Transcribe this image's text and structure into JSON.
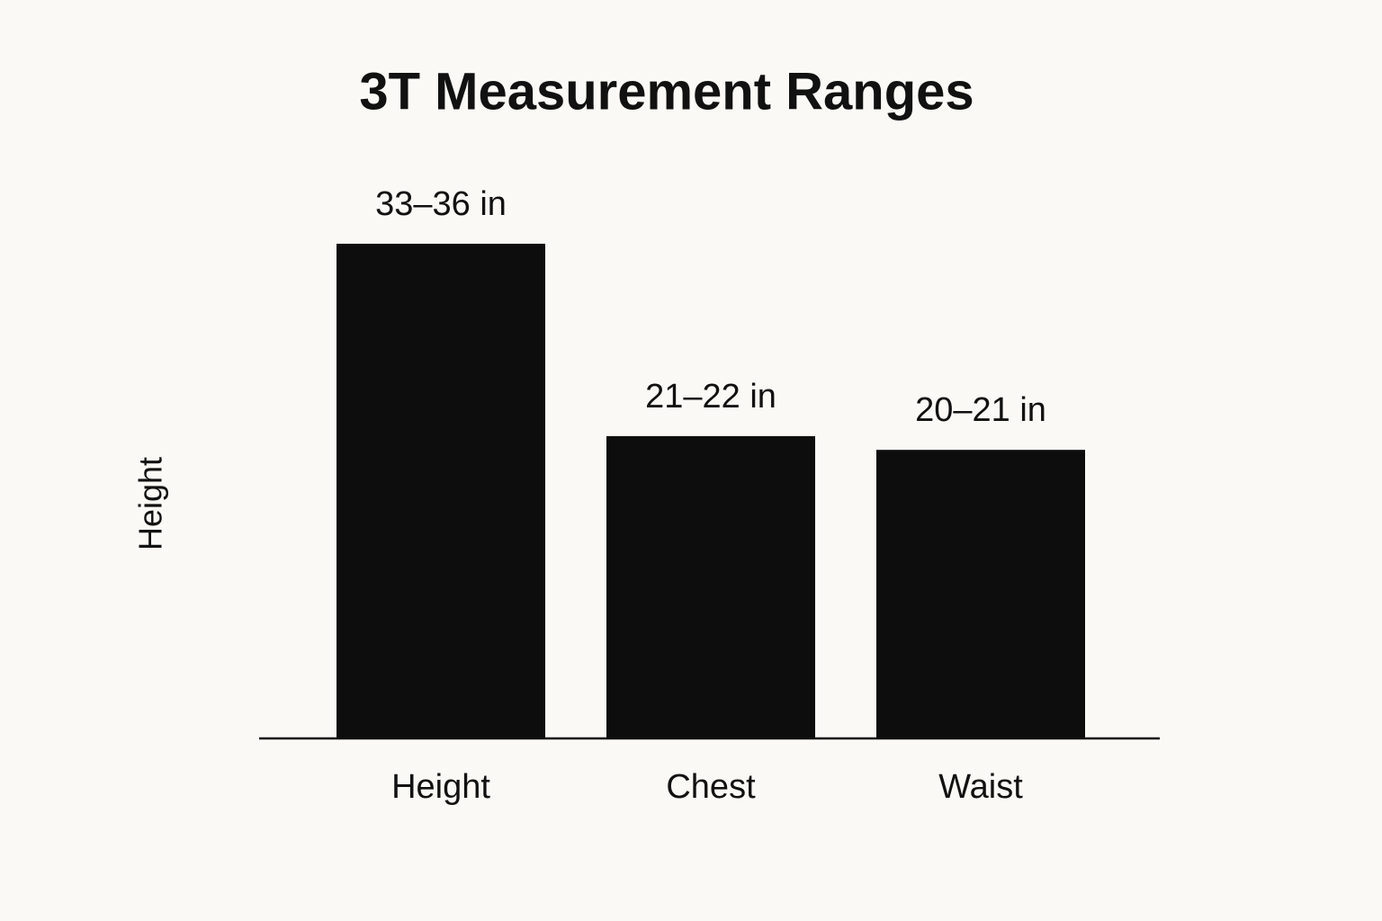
{
  "chart_data": {
    "type": "bar",
    "title": "3T Measurement Ranges",
    "y_label": "Height",
    "categories": [
      "Height",
      "Chest",
      "Waist"
    ],
    "values": [
      [
        33,
        36
      ],
      [
        21,
        22
      ],
      [
        20,
        21
      ]
    ],
    "value_labels": [
      "33–36 in",
      "21–22 in",
      "20–21 in"
    ],
    "color": "#0d0d0d"
  }
}
